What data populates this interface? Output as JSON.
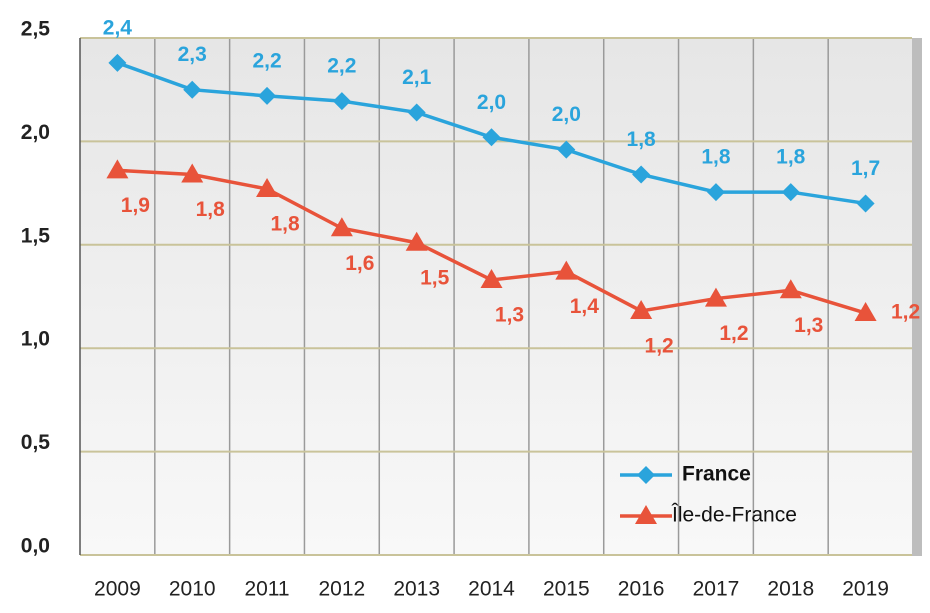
{
  "chart_data": {
    "type": "line",
    "categories": [
      "2009",
      "2010",
      "2011",
      "2012",
      "2013",
      "2014",
      "2015",
      "2016",
      "2017",
      "2018",
      "2019"
    ],
    "series": [
      {
        "name": "France",
        "color": "#2aa4dc",
        "marker": "diamond",
        "values": [
          2.38,
          2.25,
          2.22,
          2.195,
          2.14,
          2.02,
          1.96,
          1.84,
          1.755,
          1.755,
          1.7
        ],
        "value_labels": [
          "2,4",
          "2,3",
          "2,2",
          "2,2",
          "2,1",
          "2,0",
          "2,0",
          "1,8",
          "1,8",
          "1,8",
          "1,7"
        ]
      },
      {
        "name": "Île-de-France",
        "color": "#e8533a",
        "marker": "triangle",
        "values": [
          1.86,
          1.84,
          1.77,
          1.58,
          1.51,
          1.33,
          1.37,
          1.18,
          1.24,
          1.28,
          1.17
        ],
        "value_labels": [
          "1,9",
          "1,8",
          "1,8",
          "1,6",
          "1,5",
          "1,3",
          "1,4",
          "1,2",
          "1,2",
          "1,3",
          "1,2"
        ]
      }
    ],
    "ylim": [
      0,
      2.5
    ],
    "yticks": [
      {
        "value": 0,
        "label": "0,0"
      },
      {
        "value": 0.5,
        "label": "0,5"
      },
      {
        "value": 1,
        "label": "1,0"
      },
      {
        "value": 1.5,
        "label": "1,5"
      },
      {
        "value": 2,
        "label": "2,0"
      },
      {
        "value": 2.5,
        "label": "2,5"
      }
    ],
    "grid": true,
    "legend": "lower right"
  }
}
